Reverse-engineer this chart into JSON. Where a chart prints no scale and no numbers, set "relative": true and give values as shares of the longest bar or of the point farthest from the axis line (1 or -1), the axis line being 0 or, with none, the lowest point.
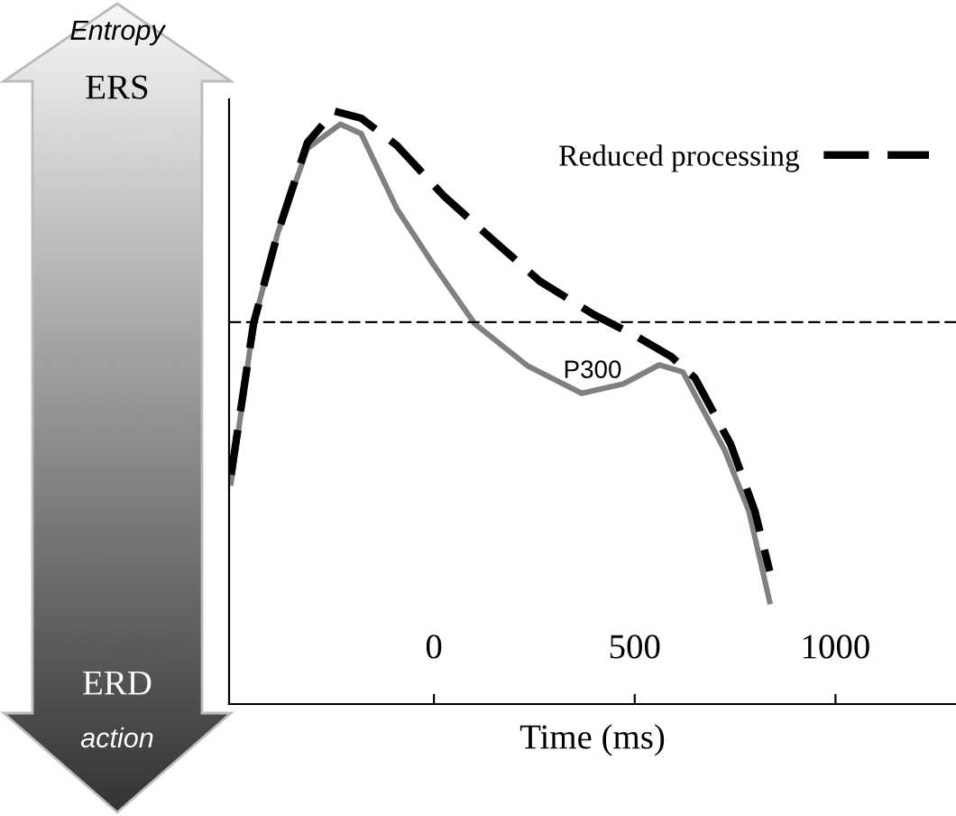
{
  "chart_data": {
    "type": "line",
    "relative": true,
    "xlabel": "Time (ms)",
    "xlim": [
      -510,
      1300
    ],
    "xticks": [
      0,
      500,
      1000
    ],
    "tick_labels": "x",
    "legend": "top right",
    "grid": false,
    "series": [
      {
        "color": "#808080",
        "line_style": "solid",
        "x": [
          -505,
          -449,
          -389,
          -315,
          -233,
          -181,
          -92,
          -3,
          101,
          234,
          368,
          472,
          561,
          620,
          724,
          784,
          836
        ],
        "values": [
          0.373,
          0.642,
          0.794,
          0.937,
          0.978,
          0.962,
          0.835,
          0.743,
          0.642,
          0.57,
          0.524,
          0.54,
          0.572,
          0.56,
          0.428,
          0.326,
          0.173
        ]
      },
      {
        "name": "Reduced processing",
        "color": "#000000",
        "line_style": "dashed",
        "x": [
          -505,
          -449,
          -389,
          -315,
          -248,
          -181,
          -92,
          26,
          145,
          264,
          398,
          502,
          591,
          650,
          739,
          799,
          836
        ],
        "values": [
          0.387,
          0.642,
          0.794,
          0.947,
          1.0,
          0.988,
          0.942,
          0.856,
          0.784,
          0.713,
          0.657,
          0.621,
          0.586,
          0.55,
          0.438,
          0.326,
          0.224
        ]
      }
    ],
    "ref_lines": [
      {
        "axis": "y",
        "value": 0.644,
        "color": "#000000",
        "line_style": "dashed"
      }
    ],
    "annotations": [
      "Entropy",
      "ERS",
      "ERD",
      "action",
      "P300"
    ]
  }
}
